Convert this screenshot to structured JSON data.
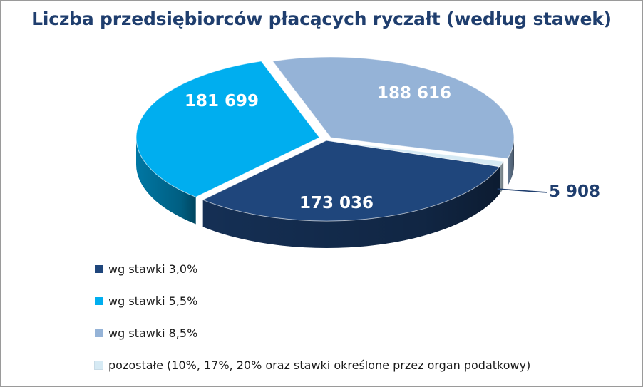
{
  "chart_data": {
    "type": "pie",
    "title": "Liczba przedsiębiorców płacących ryczałt (według stawek)",
    "categories": [
      "wg stawki 3,0%",
      "wg stawki 5,5%",
      "wg stawki 8,5%",
      "pozostałe (10%, 17%, 20% oraz stawki określone przez organ podatkowy)"
    ],
    "values": [
      173036,
      181699,
      188616,
      5908
    ],
    "data_labels": [
      "173 036",
      "181 699",
      "188 616",
      "5 908"
    ],
    "colors": [
      "#1f467c",
      "#00aeef",
      "#95b3d7",
      "#d6eaf4"
    ],
    "legend_position": "bottom-left",
    "style": "3d-exploded-pie"
  }
}
